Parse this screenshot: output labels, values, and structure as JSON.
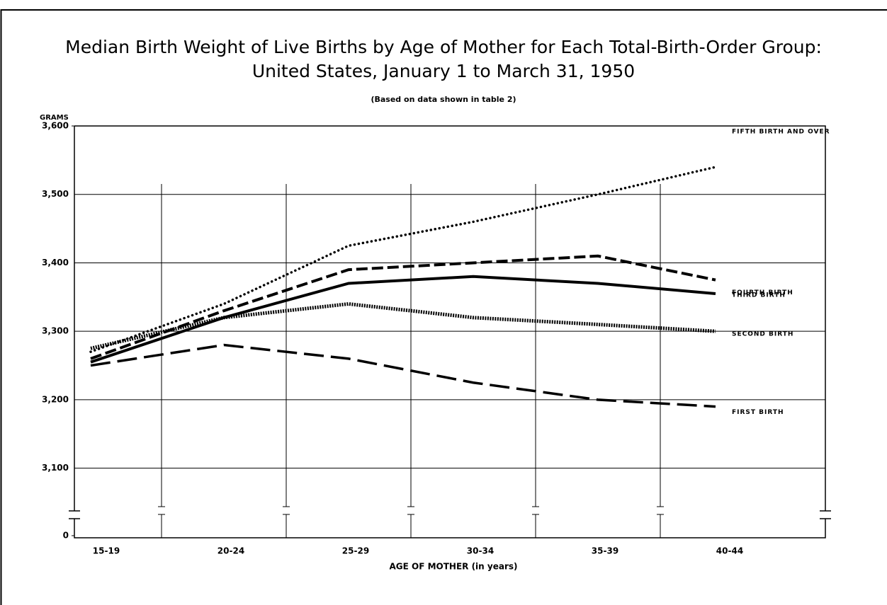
{
  "chart_data": {
    "type": "line",
    "title": [
      "Median Birth Weight  of Live Births  by  Age of Mother for Each Total-Birth-Order Group:",
      "United States, January 1 to March 31, 1950"
    ],
    "subtitle": "(Based  on data  shown  in table 2)",
    "y_axis_label": "GRAMS",
    "x_axis_label": "AGE  OF MOTHER (in years)",
    "categories": [
      "15-19",
      "20-24",
      "25-29",
      "30-34",
      "35-39",
      "40-44"
    ],
    "series": [
      {
        "name": "FIFTH BIRTH AND OVER",
        "color": "#000000",
        "style": "dotted",
        "values": [
          3270,
          3340,
          3425,
          3460,
          3500,
          3540
        ]
      },
      {
        "name": "FOURTH BIRTH",
        "color": "#000000",
        "style": "dashed",
        "values": [
          3260,
          3330,
          3390,
          3400,
          3410,
          3375
        ]
      },
      {
        "name": "THIRD BIRTH",
        "color": "#000000",
        "style": "solid",
        "values": [
          3255,
          3320,
          3370,
          3380,
          3370,
          3355
        ]
      },
      {
        "name": "SECOND BIRTH",
        "color": "#000000",
        "style": "dense-dotted",
        "values": [
          3275,
          3320,
          3340,
          3320,
          3310,
          3300
        ]
      },
      {
        "name": "FIRST BIRTH",
        "color": "#000000",
        "style": "long-dashed",
        "values": [
          3250,
          3280,
          3260,
          3225,
          3200,
          3190
        ]
      }
    ],
    "ylim": [
      0,
      3600
    ],
    "y_break": [
      0,
      3050
    ],
    "yticks": [
      {
        "value": 0,
        "label": "0"
      },
      {
        "value": 3100,
        "label": "3,100"
      },
      {
        "value": 3200,
        "label": "3,200"
      },
      {
        "value": 3300,
        "label": "3,300"
      },
      {
        "value": 3400,
        "label": "3,400"
      },
      {
        "value": 3500,
        "label": "3,500"
      },
      {
        "value": 3600,
        "label": "3,600"
      }
    ],
    "grid": true
  }
}
